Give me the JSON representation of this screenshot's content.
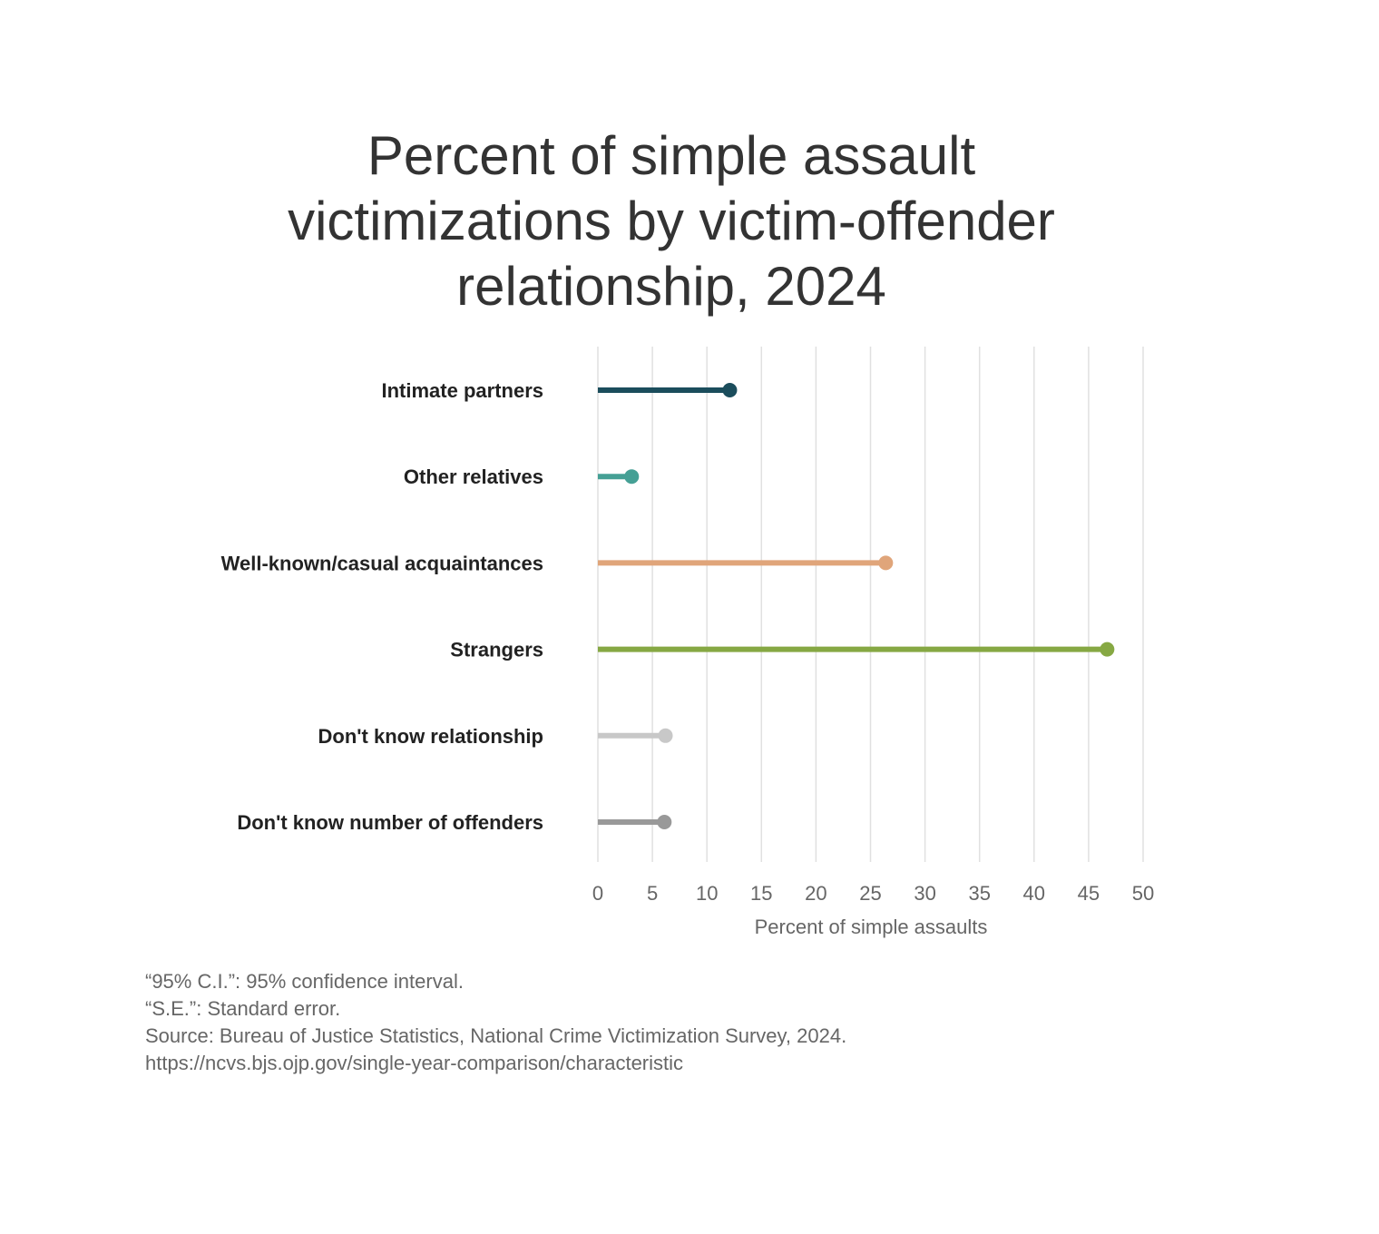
{
  "chart_data": {
    "type": "lollipop",
    "title": "Percent of simple assault victimizations by victim-offender relationship, 2024",
    "title_lines": [
      "Percent of simple assault",
      "victimizations by victim-offender",
      "relationship, 2024"
    ],
    "xlabel": "Percent of simple assaults",
    "xlim": [
      0,
      50
    ],
    "xticks": [
      0,
      5,
      10,
      15,
      20,
      25,
      30,
      35,
      40,
      45,
      50
    ],
    "xtick_labels": [
      "0",
      "5",
      "10",
      "15",
      "20",
      "25",
      "30",
      "35",
      "40",
      "45",
      "50"
    ],
    "grid": true,
    "categories": [
      "Intimate partners",
      "Other relatives",
      "Well-known/casual acquaintances",
      "Strangers",
      "Don't know relationship",
      "Don't know number of offenders"
    ],
    "values": [
      12.1,
      3.1,
      26.4,
      46.7,
      6.2,
      6.1
    ],
    "colors": [
      "#1b4d5c",
      "#45a095",
      "#e0a57a",
      "#86a843",
      "#c8c8c8",
      "#999999"
    ]
  },
  "footnotes": [
    "“95% C.I.”: 95% confidence interval.",
    "“S.E.”: Standard error.",
    "Source: Bureau of Justice Statistics, National Crime Victimization Survey, 2024.",
    "https://ncvs.bjs.ojp.gov/single-year-comparison/characteristic"
  ]
}
